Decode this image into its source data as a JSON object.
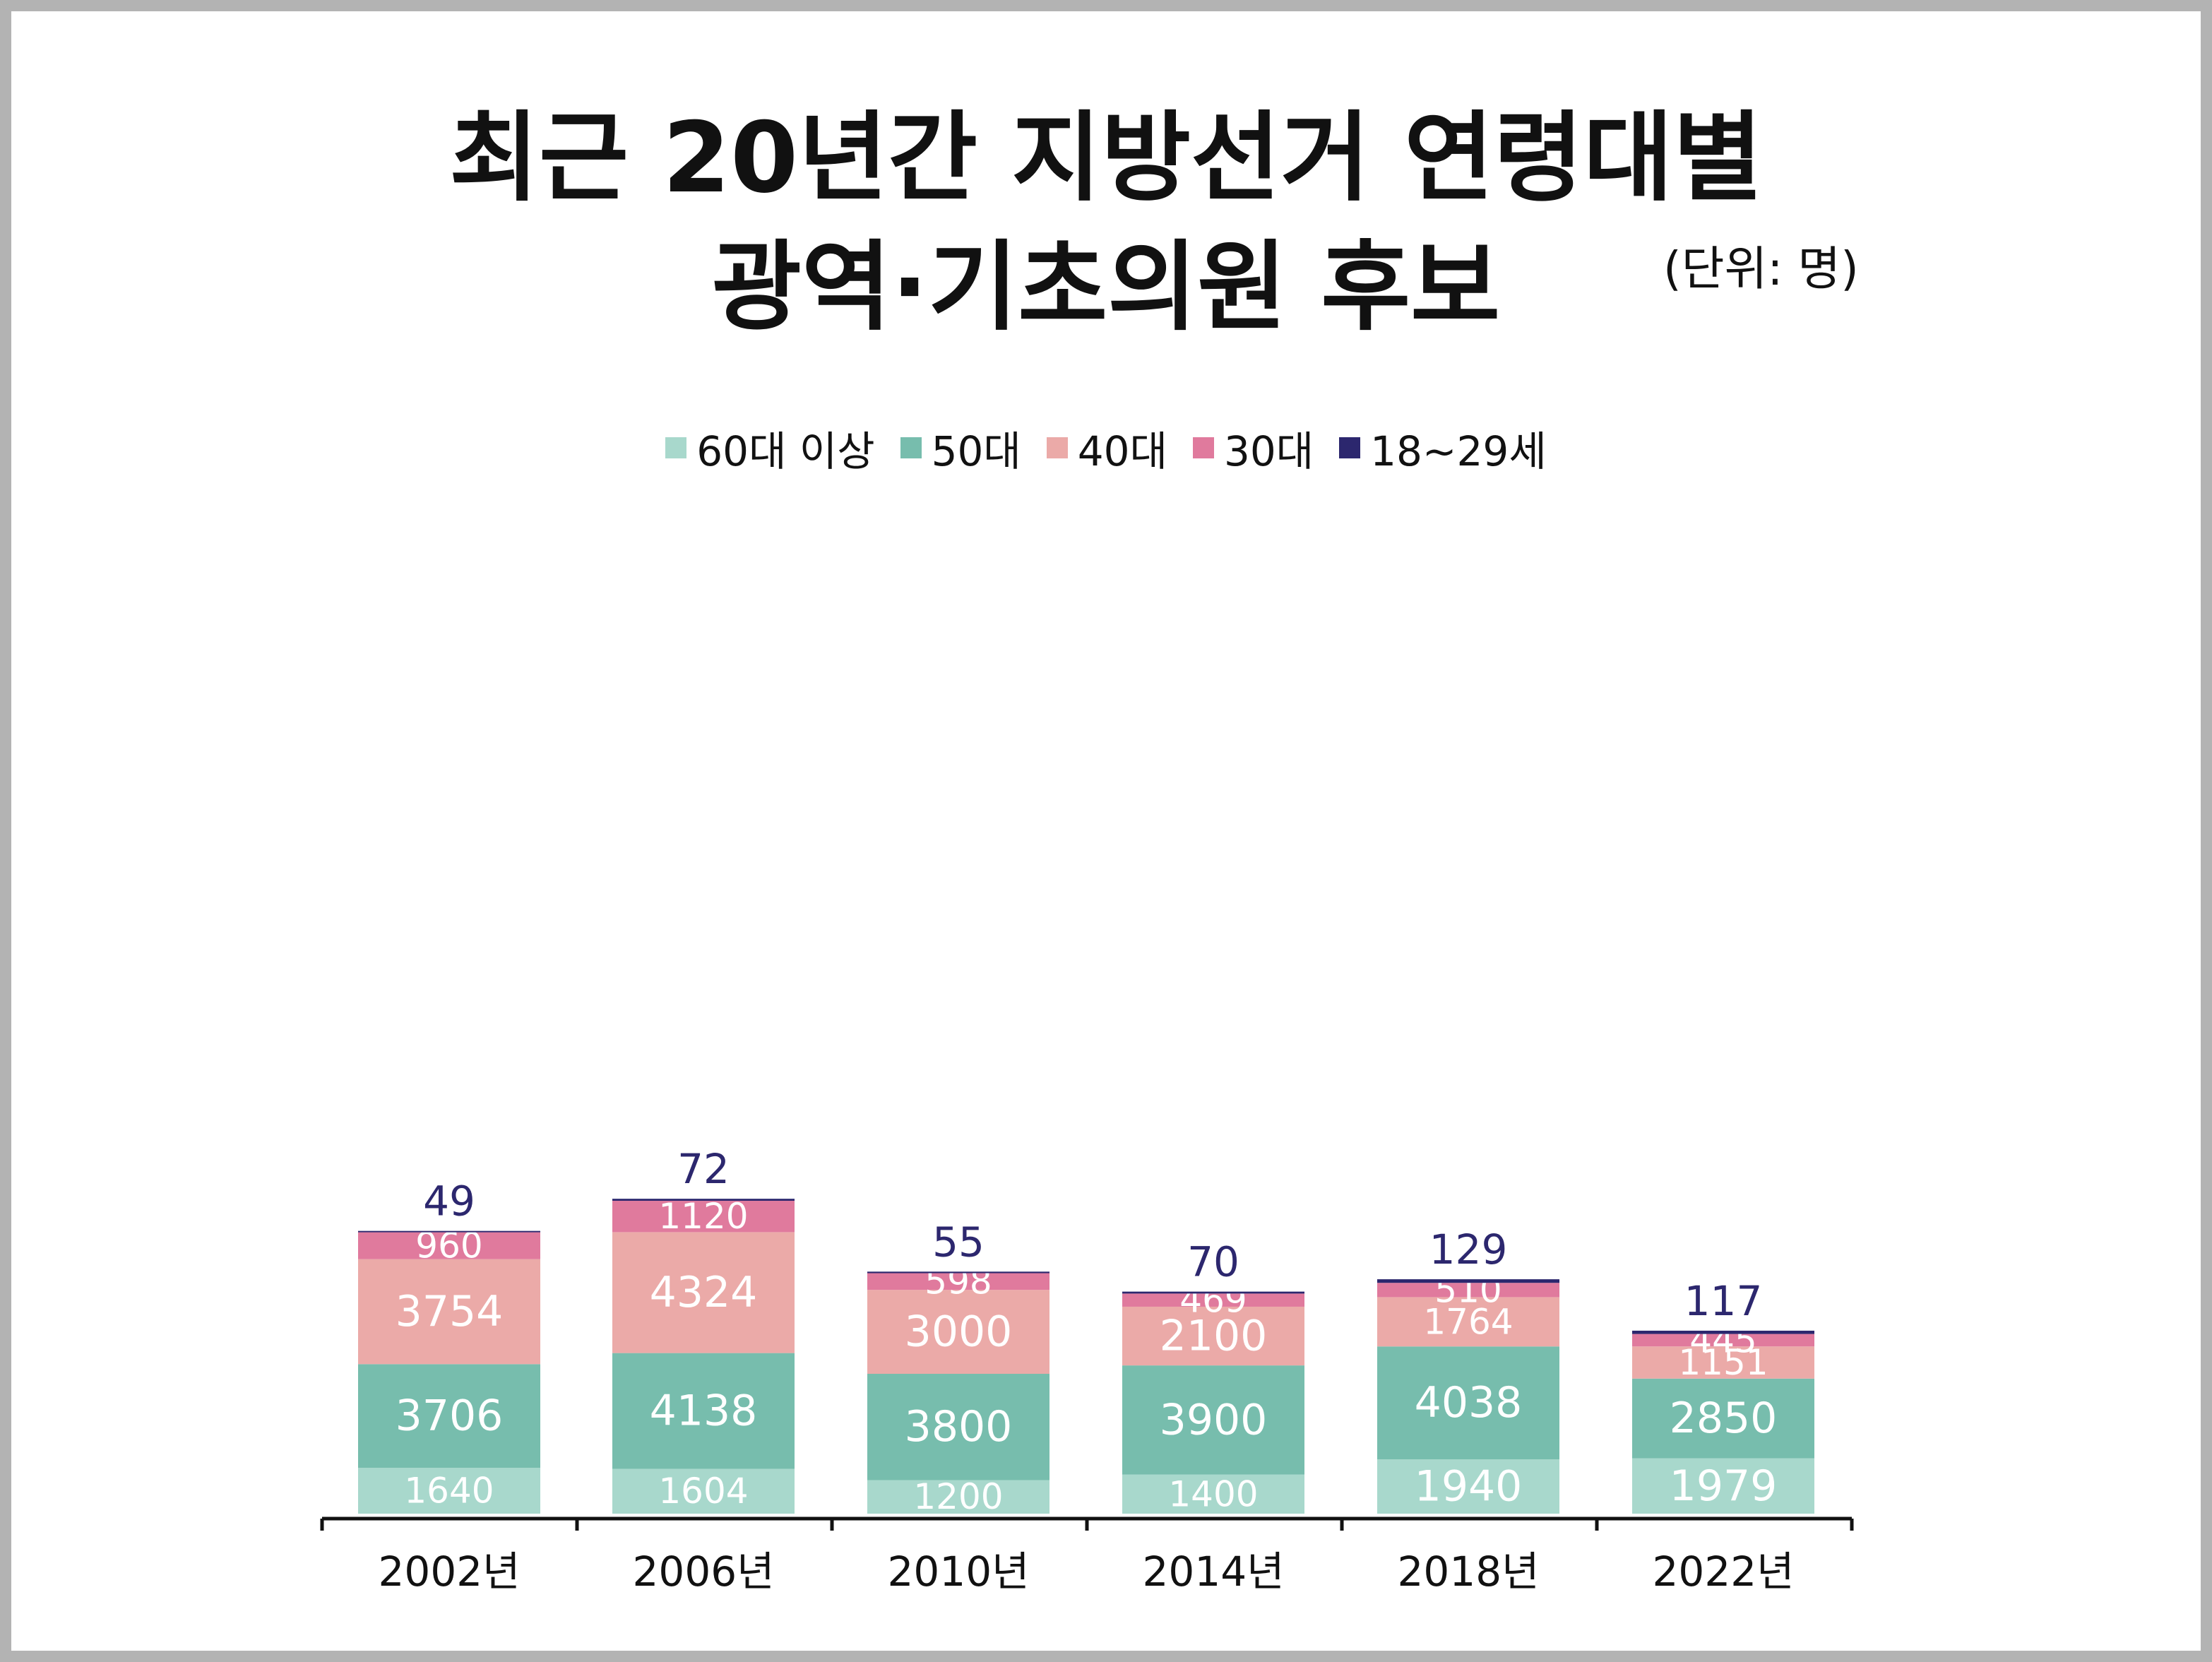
{
  "chart_data": {
    "type": "bar",
    "stacked": true,
    "title_line1": "최근 20년간 지방선거 연령대별",
    "title_line2": "광역·기초의원 후보",
    "unit_label": "(단위: 명)",
    "categories": [
      "2002년",
      "2006년",
      "2010년",
      "2014년",
      "2018년",
      "2022년"
    ],
    "series": [
      {
        "name": "60대 이상",
        "color": "#a8d8cc",
        "values": [
          1640,
          1604,
          1200,
          1400,
          1940,
          1979
        ]
      },
      {
        "name": "50대",
        "color": "#77bdad",
        "values": [
          3706,
          4138,
          3800,
          3900,
          4038,
          2850
        ]
      },
      {
        "name": "40대",
        "color": "#ebaaa8",
        "values": [
          3754,
          4324,
          3000,
          2100,
          1764,
          1151
        ]
      },
      {
        "name": "30대",
        "color": "#e07a9d",
        "values": [
          960,
          1120,
          598,
          469,
          510,
          445
        ]
      },
      {
        "name": "18~29세",
        "color": "#2c276e",
        "values": [
          49,
          72,
          55,
          70,
          129,
          117
        ]
      }
    ],
    "legend_position": "top",
    "grid": false,
    "inside_label_color": "#ffffff",
    "top_label_color": "#2c276e"
  }
}
